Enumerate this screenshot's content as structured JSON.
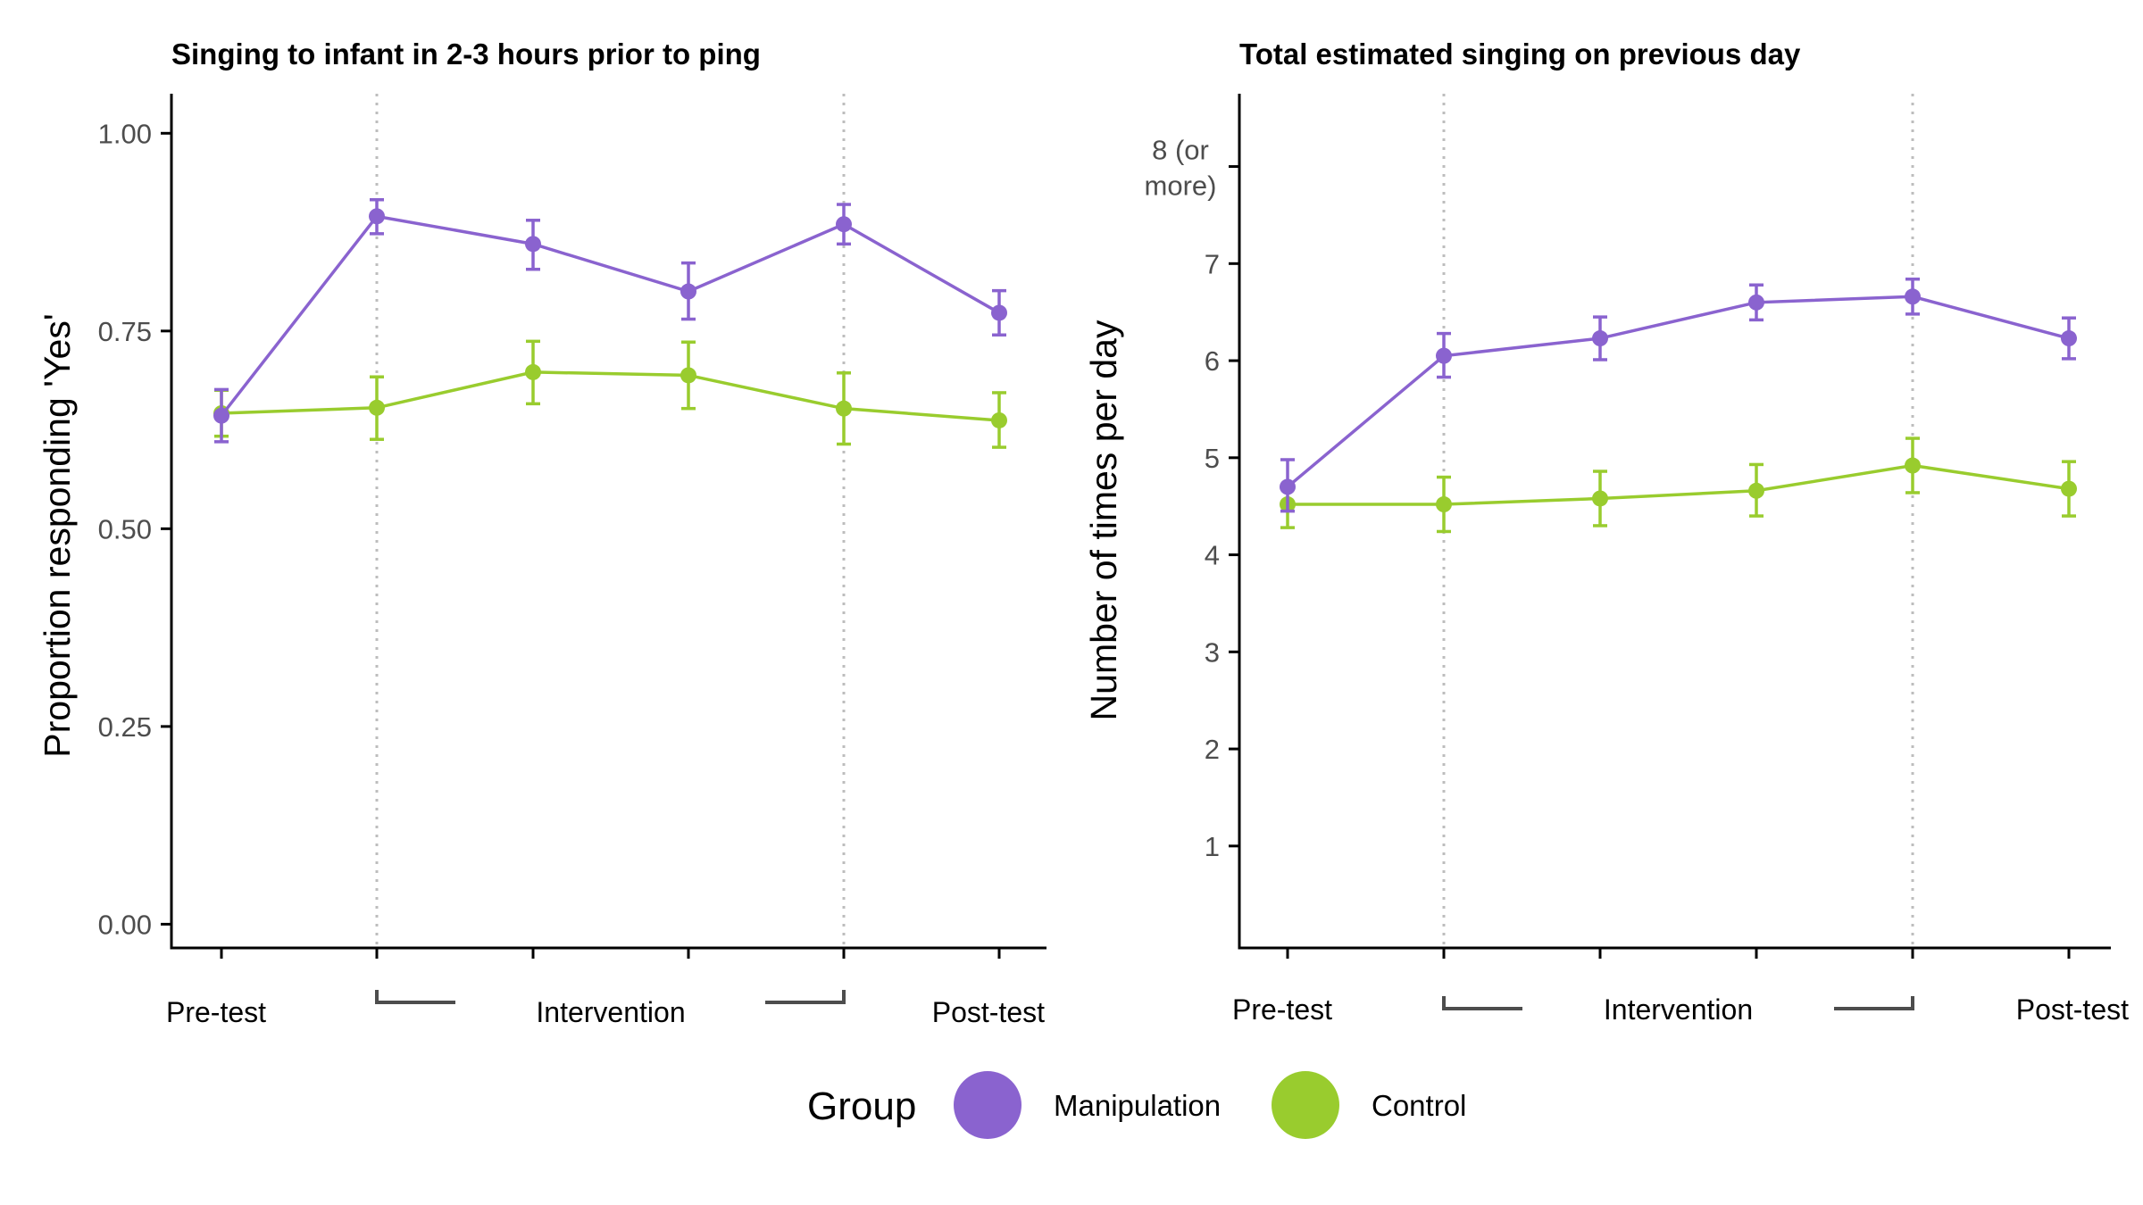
{
  "colors": {
    "manipulation": "#8a63cf",
    "control": "#99cc2e",
    "axis": "#000000",
    "tick_text": "#4d4d4d",
    "ref_line": "#bdbdbd",
    "bracket": "#4d4d4d"
  },
  "x_labels": {
    "pre": "Pre-test",
    "intervention": "Intervention",
    "post": "Post-test"
  },
  "legend": {
    "title": "Group",
    "items": [
      {
        "label": "Manipulation",
        "color": "#8a63cf"
      },
      {
        "label": "Control",
        "color": "#99cc2e"
      }
    ]
  },
  "chart_data": [
    {
      "type": "line",
      "title": "Singing to infant in 2-3 hours prior to ping",
      "ylabel": "Proportion responding 'Yes'",
      "xlabel": "",
      "x": [
        1,
        2,
        3,
        4,
        5,
        6
      ],
      "ylim": [
        -0.03,
        1.05
      ],
      "yticks": [
        0.0,
        0.25,
        0.5,
        0.75,
        1.0
      ],
      "ytick_labels": [
        "0.00",
        "0.25",
        "0.50",
        "0.75",
        "1.00"
      ],
      "reference_lines_x": [
        2,
        5
      ],
      "grid": false,
      "legend_position": "bottom",
      "series": [
        {
          "name": "Manipulation",
          "color": "#8a63cf",
          "values": [
            0.643,
            0.895,
            0.86,
            0.8,
            0.885,
            0.773
          ],
          "err_low": [
            0.61,
            0.873,
            0.828,
            0.765,
            0.86,
            0.745
          ],
          "err_high": [
            0.676,
            0.916,
            0.89,
            0.836,
            0.91,
            0.801
          ]
        },
        {
          "name": "Control",
          "color": "#99cc2e",
          "values": [
            0.646,
            0.653,
            0.698,
            0.694,
            0.652,
            0.637
          ],
          "err_low": [
            0.617,
            0.613,
            0.658,
            0.652,
            0.607,
            0.603
          ],
          "err_high": [
            0.675,
            0.692,
            0.737,
            0.736,
            0.697,
            0.672
          ]
        }
      ]
    },
    {
      "type": "line",
      "title": "Total estimated singing on previous day",
      "ylabel": "Number of times per day",
      "xlabel": "",
      "x": [
        1,
        2,
        3,
        4,
        5,
        6
      ],
      "ylim": [
        -0.05,
        8.75
      ],
      "yticks": [
        1,
        2,
        3,
        4,
        5,
        6,
        7,
        8
      ],
      "ytick_labels": [
        "1",
        "2",
        "3",
        "4",
        "5",
        "6",
        "7",
        "8 (or more)"
      ],
      "reference_lines_x": [
        2,
        5
      ],
      "grid": false,
      "legend_position": "bottom",
      "series": [
        {
          "name": "Manipulation",
          "color": "#8a63cf",
          "values": [
            4.7,
            6.05,
            6.23,
            6.6,
            6.66,
            6.23
          ],
          "err_low": [
            4.45,
            5.83,
            6.01,
            6.42,
            6.48,
            6.02
          ],
          "err_high": [
            4.98,
            6.28,
            6.45,
            6.78,
            6.84,
            6.44
          ]
        },
        {
          "name": "Control",
          "color": "#99cc2e",
          "values": [
            4.52,
            4.52,
            4.58,
            4.66,
            4.92,
            4.68
          ],
          "err_low": [
            4.28,
            4.24,
            4.3,
            4.4,
            4.64,
            4.4
          ],
          "err_high": [
            4.52,
            4.8,
            4.86,
            4.93,
            5.2,
            4.96
          ]
        }
      ]
    }
  ]
}
